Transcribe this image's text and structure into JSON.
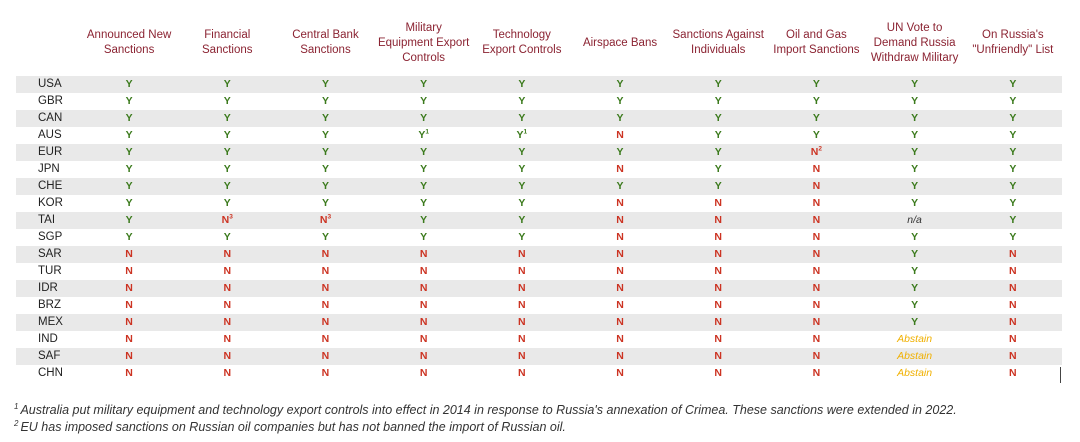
{
  "columns": [
    "Announced New Sanctions",
    "Financial Sanctions",
    "Central Bank Sanctions",
    "Military Equipment Export Controls",
    "Technology Export Controls",
    "Airspace Bans",
    "Sanctions Against Individuals",
    "Oil and Gas Import Sanctions",
    "UN Vote to Demand Russia Withdraw Military",
    "On Russia's \"Unfriendly\" List"
  ],
  "rows": [
    {
      "country": "USA",
      "cells": [
        {
          "v": "Y"
        },
        {
          "v": "Y"
        },
        {
          "v": "Y"
        },
        {
          "v": "Y"
        },
        {
          "v": "Y"
        },
        {
          "v": "Y"
        },
        {
          "v": "Y"
        },
        {
          "v": "Y"
        },
        {
          "v": "Y"
        },
        {
          "v": "Y"
        }
      ]
    },
    {
      "country": "GBR",
      "cells": [
        {
          "v": "Y"
        },
        {
          "v": "Y"
        },
        {
          "v": "Y"
        },
        {
          "v": "Y"
        },
        {
          "v": "Y"
        },
        {
          "v": "Y"
        },
        {
          "v": "Y"
        },
        {
          "v": "Y"
        },
        {
          "v": "Y"
        },
        {
          "v": "Y"
        }
      ]
    },
    {
      "country": "CAN",
      "cells": [
        {
          "v": "Y"
        },
        {
          "v": "Y"
        },
        {
          "v": "Y"
        },
        {
          "v": "Y"
        },
        {
          "v": "Y"
        },
        {
          "v": "Y"
        },
        {
          "v": "Y"
        },
        {
          "v": "Y"
        },
        {
          "v": "Y"
        },
        {
          "v": "Y"
        }
      ]
    },
    {
      "country": "AUS",
      "cells": [
        {
          "v": "Y"
        },
        {
          "v": "Y"
        },
        {
          "v": "Y"
        },
        {
          "v": "Y",
          "note": "1"
        },
        {
          "v": "Y",
          "note": "1"
        },
        {
          "v": "N"
        },
        {
          "v": "Y"
        },
        {
          "v": "Y"
        },
        {
          "v": "Y"
        },
        {
          "v": "Y"
        }
      ]
    },
    {
      "country": "EUR",
      "cells": [
        {
          "v": "Y"
        },
        {
          "v": "Y"
        },
        {
          "v": "Y"
        },
        {
          "v": "Y"
        },
        {
          "v": "Y"
        },
        {
          "v": "Y"
        },
        {
          "v": "Y"
        },
        {
          "v": "N",
          "note": "2"
        },
        {
          "v": "Y"
        },
        {
          "v": "Y"
        }
      ]
    },
    {
      "country": "JPN",
      "cells": [
        {
          "v": "Y"
        },
        {
          "v": "Y"
        },
        {
          "v": "Y"
        },
        {
          "v": "Y"
        },
        {
          "v": "Y"
        },
        {
          "v": "N"
        },
        {
          "v": "Y"
        },
        {
          "v": "N"
        },
        {
          "v": "Y"
        },
        {
          "v": "Y"
        }
      ]
    },
    {
      "country": "CHE",
      "cells": [
        {
          "v": "Y"
        },
        {
          "v": "Y"
        },
        {
          "v": "Y"
        },
        {
          "v": "Y"
        },
        {
          "v": "Y"
        },
        {
          "v": "Y"
        },
        {
          "v": "Y"
        },
        {
          "v": "N"
        },
        {
          "v": "Y"
        },
        {
          "v": "Y"
        }
      ]
    },
    {
      "country": "KOR",
      "cells": [
        {
          "v": "Y"
        },
        {
          "v": "Y"
        },
        {
          "v": "Y"
        },
        {
          "v": "Y"
        },
        {
          "v": "Y"
        },
        {
          "v": "N"
        },
        {
          "v": "N"
        },
        {
          "v": "N"
        },
        {
          "v": "Y"
        },
        {
          "v": "Y"
        }
      ]
    },
    {
      "country": "TAI",
      "cells": [
        {
          "v": "Y"
        },
        {
          "v": "N",
          "note": "3"
        },
        {
          "v": "N",
          "note": "3"
        },
        {
          "v": "Y"
        },
        {
          "v": "Y"
        },
        {
          "v": "N"
        },
        {
          "v": "N"
        },
        {
          "v": "N"
        },
        {
          "v": "n/a"
        },
        {
          "v": "Y"
        }
      ]
    },
    {
      "country": "SGP",
      "cells": [
        {
          "v": "Y"
        },
        {
          "v": "Y"
        },
        {
          "v": "Y"
        },
        {
          "v": "Y"
        },
        {
          "v": "Y"
        },
        {
          "v": "N"
        },
        {
          "v": "N"
        },
        {
          "v": "N"
        },
        {
          "v": "Y"
        },
        {
          "v": "Y"
        }
      ]
    },
    {
      "country": "SAR",
      "cells": [
        {
          "v": "N"
        },
        {
          "v": "N"
        },
        {
          "v": "N"
        },
        {
          "v": "N"
        },
        {
          "v": "N"
        },
        {
          "v": "N"
        },
        {
          "v": "N"
        },
        {
          "v": "N"
        },
        {
          "v": "Y"
        },
        {
          "v": "N"
        }
      ]
    },
    {
      "country": "TUR",
      "cells": [
        {
          "v": "N"
        },
        {
          "v": "N"
        },
        {
          "v": "N"
        },
        {
          "v": "N"
        },
        {
          "v": "N"
        },
        {
          "v": "N"
        },
        {
          "v": "N"
        },
        {
          "v": "N"
        },
        {
          "v": "Y"
        },
        {
          "v": "N"
        }
      ]
    },
    {
      "country": "IDR",
      "cells": [
        {
          "v": "N"
        },
        {
          "v": "N"
        },
        {
          "v": "N"
        },
        {
          "v": "N"
        },
        {
          "v": "N"
        },
        {
          "v": "N"
        },
        {
          "v": "N"
        },
        {
          "v": "N"
        },
        {
          "v": "Y"
        },
        {
          "v": "N"
        }
      ]
    },
    {
      "country": "BRZ",
      "cells": [
        {
          "v": "N"
        },
        {
          "v": "N"
        },
        {
          "v": "N"
        },
        {
          "v": "N"
        },
        {
          "v": "N"
        },
        {
          "v": "N"
        },
        {
          "v": "N"
        },
        {
          "v": "N"
        },
        {
          "v": "Y"
        },
        {
          "v": "N"
        }
      ]
    },
    {
      "country": "MEX",
      "cells": [
        {
          "v": "N"
        },
        {
          "v": "N"
        },
        {
          "v": "N"
        },
        {
          "v": "N"
        },
        {
          "v": "N"
        },
        {
          "v": "N"
        },
        {
          "v": "N"
        },
        {
          "v": "N"
        },
        {
          "v": "Y"
        },
        {
          "v": "N"
        }
      ]
    },
    {
      "country": "IND",
      "cells": [
        {
          "v": "N"
        },
        {
          "v": "N"
        },
        {
          "v": "N"
        },
        {
          "v": "N"
        },
        {
          "v": "N"
        },
        {
          "v": "N"
        },
        {
          "v": "N"
        },
        {
          "v": "N"
        },
        {
          "v": "Abstain"
        },
        {
          "v": "N"
        }
      ]
    },
    {
      "country": "SAF",
      "cells": [
        {
          "v": "N"
        },
        {
          "v": "N"
        },
        {
          "v": "N"
        },
        {
          "v": "N"
        },
        {
          "v": "N"
        },
        {
          "v": "N"
        },
        {
          "v": "N"
        },
        {
          "v": "N"
        },
        {
          "v": "Abstain"
        },
        {
          "v": "N"
        }
      ]
    },
    {
      "country": "CHN",
      "cells": [
        {
          "v": "N"
        },
        {
          "v": "N"
        },
        {
          "v": "N"
        },
        {
          "v": "N"
        },
        {
          "v": "N"
        },
        {
          "v": "N"
        },
        {
          "v": "N"
        },
        {
          "v": "N"
        },
        {
          "v": "Abstain"
        },
        {
          "v": "N"
        }
      ]
    }
  ],
  "colors": {
    "header_text": "#8b2332",
    "yes": "#3b7a1c",
    "no": "#cc3322",
    "abstain": "#f0b000",
    "stripe": "#e9e9e9"
  },
  "footnotes": [
    {
      "mark": "1",
      "text": "Australia put military equipment and technology export controls into effect in 2014 in response to Russia's annexation of Crimea. These sanctions were extended in 2022."
    },
    {
      "mark": "2",
      "text": "EU has imposed sanctions on Russian oil companies but has not banned the import of Russian oil."
    }
  ]
}
